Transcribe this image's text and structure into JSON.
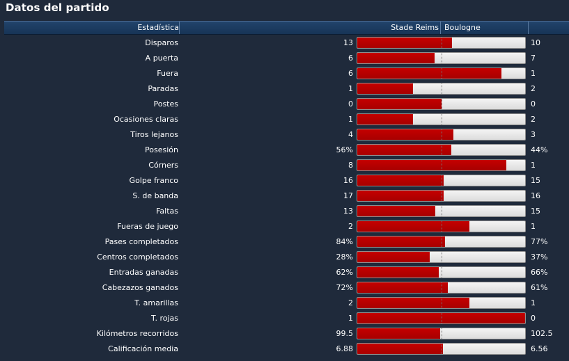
{
  "title": "Datos del partido",
  "header": {
    "stat_label": "Estadística",
    "home_team": "Stade Reims",
    "away_team": "Boulogne"
  },
  "colors": {
    "background": "#1f2a3b",
    "header": "#1b3b60",
    "home_bar": "#b80000",
    "away_bar": "#e8e8e8"
  },
  "stats": [
    {
      "label": "Disparos",
      "home": "13",
      "away": "10",
      "home_share": 0.565
    },
    {
      "label": "A puerta",
      "home": "6",
      "away": "7",
      "home_share": 0.462
    },
    {
      "label": "Fuera",
      "home": "6",
      "away": "1",
      "home_share": 0.857
    },
    {
      "label": "Paradas",
      "home": "1",
      "away": "2",
      "home_share": 0.333
    },
    {
      "label": "Postes",
      "home": "0",
      "away": "0",
      "home_share": 0.5
    },
    {
      "label": "Ocasiones claras",
      "home": "1",
      "away": "2",
      "home_share": 0.333
    },
    {
      "label": "Tiros lejanos",
      "home": "4",
      "away": "3",
      "home_share": 0.571
    },
    {
      "label": "Posesión",
      "home": "56%",
      "away": "44%",
      "home_share": 0.56
    },
    {
      "label": "Córners",
      "home": "8",
      "away": "1",
      "home_share": 0.889
    },
    {
      "label": "Golpe franco",
      "home": "16",
      "away": "15",
      "home_share": 0.516
    },
    {
      "label": "S. de banda",
      "home": "17",
      "away": "16",
      "home_share": 0.515
    },
    {
      "label": "Faltas",
      "home": "13",
      "away": "15",
      "home_share": 0.464
    },
    {
      "label": "Fueras de juego",
      "home": "2",
      "away": "1",
      "home_share": 0.667
    },
    {
      "label": "Pases completados",
      "home": "84%",
      "away": "77%",
      "home_share": 0.522
    },
    {
      "label": "Centros completados",
      "home": "28%",
      "away": "37%",
      "home_share": 0.431
    },
    {
      "label": "Entradas ganadas",
      "home": "62%",
      "away": "66%",
      "home_share": 0.484
    },
    {
      "label": "Cabezazos ganados",
      "home": "72%",
      "away": "61%",
      "home_share": 0.541
    },
    {
      "label": "T. amarillas",
      "home": "2",
      "away": "1",
      "home_share": 0.667
    },
    {
      "label": "T. rojas",
      "home": "1",
      "away": "0",
      "home_share": 1.0
    },
    {
      "label": "Kilómetros recorridos",
      "home": "99.5",
      "away": "102.5",
      "home_share": 0.493
    },
    {
      "label": "Calificación media",
      "home": "6.88",
      "away": "6.56",
      "home_share": 0.512
    }
  ]
}
